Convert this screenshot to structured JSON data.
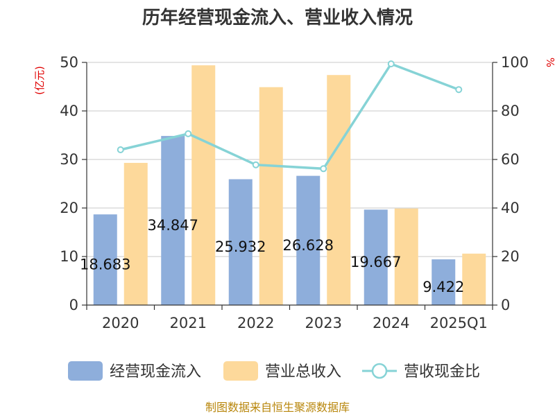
{
  "chart_data": {
    "type": "bar",
    "title": "历年经营现金流入、营业收入情况",
    "categories": [
      "2020",
      "2021",
      "2022",
      "2023",
      "2024",
      "2025Q1"
    ],
    "y_left": {
      "unit": "(亿元)",
      "ylim": [
        0,
        50
      ],
      "ticks": [
        "0",
        "10",
        "20",
        "30",
        "40",
        "50"
      ]
    },
    "y_right": {
      "unit": "%",
      "ylim": [
        0,
        100
      ],
      "ticks": [
        "0",
        "20",
        "40",
        "60",
        "80",
        "100"
      ]
    },
    "series": [
      {
        "name": "经营现金流入",
        "type": "bar",
        "axis": "left",
        "color": "#8eaedb",
        "values": [
          18.683,
          34.847,
          25.932,
          26.628,
          19.667,
          9.422
        ],
        "labels": [
          "18.683",
          "34.847",
          "25.932",
          "26.628",
          "19.667",
          "9.422"
        ]
      },
      {
        "name": "营业总收入",
        "type": "bar",
        "axis": "left",
        "color": "#fdd99b",
        "values": [
          29.3,
          49.4,
          44.9,
          47.4,
          19.9,
          10.6
        ]
      },
      {
        "name": "营收现金比",
        "type": "line",
        "axis": "right",
        "color": "#86d3d6",
        "values": [
          64.0,
          70.6,
          57.8,
          56.2,
          99.4,
          88.8
        ]
      }
    ],
    "grid": true,
    "legend": "bottom"
  },
  "footer": {
    "source": "制图数据来自恒生聚源数据库"
  }
}
